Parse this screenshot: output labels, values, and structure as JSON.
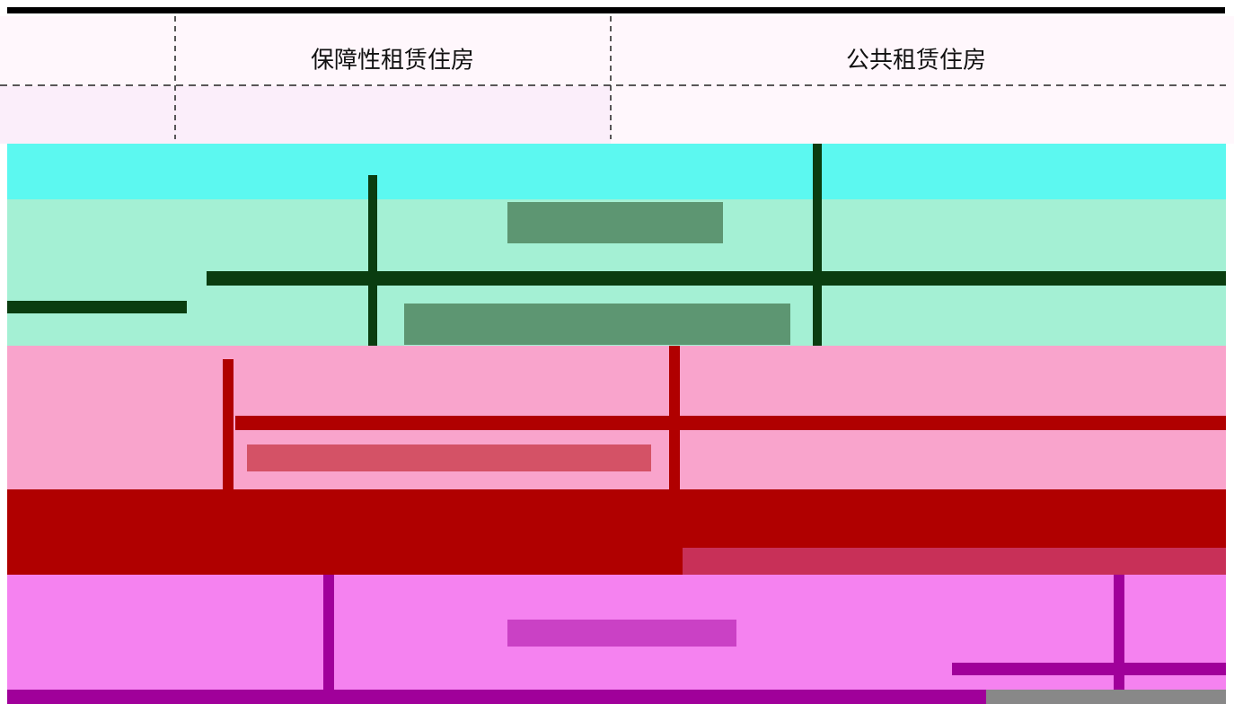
{
  "table": {
    "header": [
      "保障性租赁住房",
      "公共租赁住房"
    ]
  }
}
